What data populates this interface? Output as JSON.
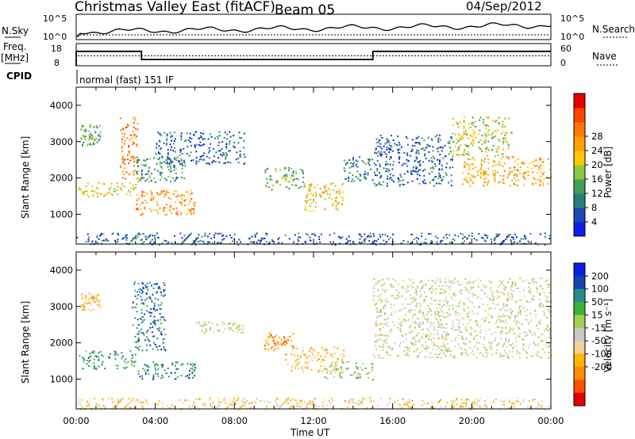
{
  "header": {
    "title": "Christmas Valley East (fitACF)",
    "beam": "Beam 05",
    "date": "04/Sep/2012"
  },
  "params": {
    "nsky_label": "N.Sky",
    "nsky_ticks": [
      "10^5",
      "10^0"
    ],
    "nsearch_label": "N.Search",
    "nsearch_ticks": [
      "10^5",
      "10^0"
    ],
    "freq_label": "Freq.",
    "freq_unit": "[MHz]",
    "freq_ticks": [
      "18",
      "8"
    ],
    "nave_label": "Nave",
    "nave_ticks": [
      "60",
      "0"
    ],
    "cpid_label": "CPID",
    "cpid_value": "normal (fast) 151 IF",
    "freq_segments": [
      {
        "start_h": 0.0,
        "end_h": 3.3,
        "mhz": 14.5
      },
      {
        "start_h": 3.3,
        "end_h": 15.0,
        "mhz": 10.8
      },
      {
        "start_h": 15.0,
        "end_h": 24.0,
        "mhz": 14.5
      }
    ],
    "nave_level": 27
  },
  "axes": {
    "time_ticks": [
      "00:00",
      "04:00",
      "08:00",
      "12:00",
      "16:00",
      "20:00",
      "00:00"
    ],
    "time_label": "Time UT",
    "range_ticks": [
      "1000",
      "2000",
      "3000",
      "4000"
    ],
    "range_label": "Slant Range [km]"
  },
  "power_colorbar": {
    "label": "Power [dB]",
    "ticks": [
      "4",
      "8",
      "12",
      "16",
      "20",
      "24",
      "28"
    ],
    "colors": [
      "#0a1ef0",
      "#1e46b4",
      "#2a7d7a",
      "#3fa05a",
      "#8cc83c",
      "#ffc800",
      "#ffa000",
      "#ff7800",
      "#ff4600",
      "#e60000"
    ]
  },
  "velocity_colorbar": {
    "label": "Velocity [m s⁻¹]",
    "ticks": [
      "200",
      "100",
      "50",
      "15",
      "-15",
      "-50",
      "-100",
      "-200"
    ],
    "colors": [
      "#0a1ee6",
      "#1446aa",
      "#288c8c",
      "#3cb43c",
      "#a0d250",
      "#c8c8c8",
      "#f0d296",
      "#ffb400",
      "#ff8c00",
      "#ff5000",
      "#e60000"
    ]
  },
  "chart_data": [
    {
      "type": "heatmap",
      "title": "Power",
      "xlabel": "Time UT",
      "ylabel": "Slant Range [km]",
      "xlim": [
        0,
        24
      ],
      "ylim": [
        180,
        4500
      ],
      "colorbar": {
        "label": "Power [dB]",
        "range": [
          0,
          32
        ]
      },
      "regions": [
        {
          "t": [
            0.2,
            1.2
          ],
          "r": [
            2900,
            3500
          ],
          "value": 12
        },
        {
          "t": [
            0.1,
            3.0
          ],
          "r": [
            1500,
            1900
          ],
          "value": 18
        },
        {
          "t": [
            2.2,
            3.1
          ],
          "r": [
            2000,
            3700
          ],
          "value": 24
        },
        {
          "t": [
            3.0,
            6.0
          ],
          "r": [
            1000,
            1700
          ],
          "value": 22
        },
        {
          "t": [
            3.0,
            5.5
          ],
          "r": [
            1900,
            2600
          ],
          "value": 10
        },
        {
          "t": [
            4.0,
            8.5
          ],
          "r": [
            2400,
            3300
          ],
          "value": 6
        },
        {
          "t": [
            9.5,
            11.5
          ],
          "r": [
            1700,
            2300
          ],
          "value": 12
        },
        {
          "t": [
            11.5,
            13.5
          ],
          "r": [
            1100,
            1900
          ],
          "value": 18
        },
        {
          "t": [
            13.5,
            15.0
          ],
          "r": [
            1900,
            2600
          ],
          "value": 8
        },
        {
          "t": [
            15.0,
            19.0
          ],
          "r": [
            1800,
            3200
          ],
          "value": 6
        },
        {
          "t": [
            19.0,
            22.0
          ],
          "r": [
            2600,
            3700
          ],
          "value": 16
        },
        {
          "t": [
            19.5,
            24.0
          ],
          "r": [
            1800,
            2600
          ],
          "value": 20
        },
        {
          "t": [
            0.0,
            24.0
          ],
          "r": [
            180,
            500
          ],
          "value": 6
        }
      ]
    },
    {
      "type": "heatmap",
      "title": "Velocity",
      "xlabel": "Time UT",
      "ylabel": "Slant Range [km]",
      "xlim": [
        0,
        24
      ],
      "ylim": [
        180,
        4500
      ],
      "colorbar": {
        "label": "Velocity [m s⁻¹]",
        "range": [
          -250,
          250
        ]
      },
      "regions": [
        {
          "t": [
            0.2,
            1.2
          ],
          "r": [
            2900,
            3400
          ],
          "value": -70
        },
        {
          "t": [
            0.1,
            3.0
          ],
          "r": [
            1300,
            1800
          ],
          "value": 120
        },
        {
          "t": [
            2.8,
            4.5
          ],
          "r": [
            1800,
            3700
          ],
          "value": 150
        },
        {
          "t": [
            3.0,
            6.0
          ],
          "r": [
            1000,
            1500
          ],
          "value": 130
        },
        {
          "t": [
            6.0,
            8.5
          ],
          "r": [
            2300,
            2600
          ],
          "value": 0
        },
        {
          "t": [
            9.5,
            11.0
          ],
          "r": [
            1800,
            2300
          ],
          "value": -120
        },
        {
          "t": [
            10.5,
            13.5
          ],
          "r": [
            1200,
            1900
          ],
          "value": -70
        },
        {
          "t": [
            12.5,
            15.0
          ],
          "r": [
            1000,
            1500
          ],
          "value": 40
        },
        {
          "t": [
            15.0,
            24.0
          ],
          "r": [
            1600,
            3800
          ],
          "value": 0
        },
        {
          "t": [
            0.0,
            24.0
          ],
          "r": [
            180,
            500
          ],
          "value": -60
        }
      ]
    }
  ]
}
